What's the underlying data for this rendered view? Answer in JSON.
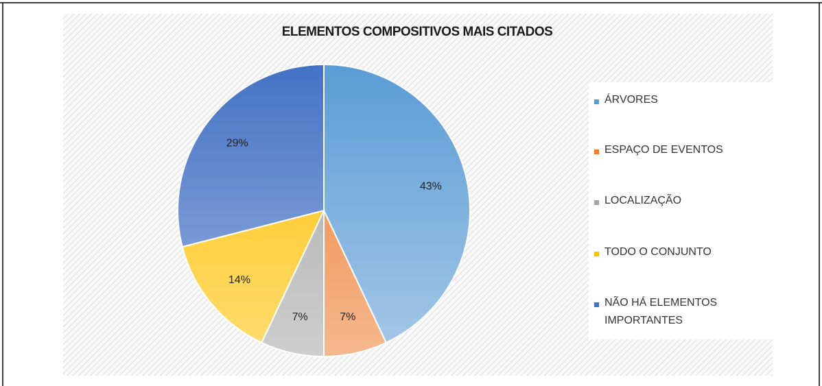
{
  "chart_data": {
    "type": "pie",
    "title": "ELEMENTOS COMPOSITIVOS MAIS CITADOS",
    "categories": [
      "ÁRVORES",
      "ESPAÇO DE EVENTOS",
      "LOCALIZAÇÃO",
      "TODO O CONJUNTO",
      "NÃO HÁ ELEMENTOS IMPORTANTES"
    ],
    "values": [
      43,
      7,
      7,
      14,
      29
    ],
    "value_labels": [
      "43%",
      "7%",
      "7%",
      "14%",
      "29%"
    ],
    "colors": [
      "#5b9bd5",
      "#ed7d31",
      "#a5a5a5",
      "#ffc000",
      "#4472c4"
    ],
    "legend": "right"
  }
}
